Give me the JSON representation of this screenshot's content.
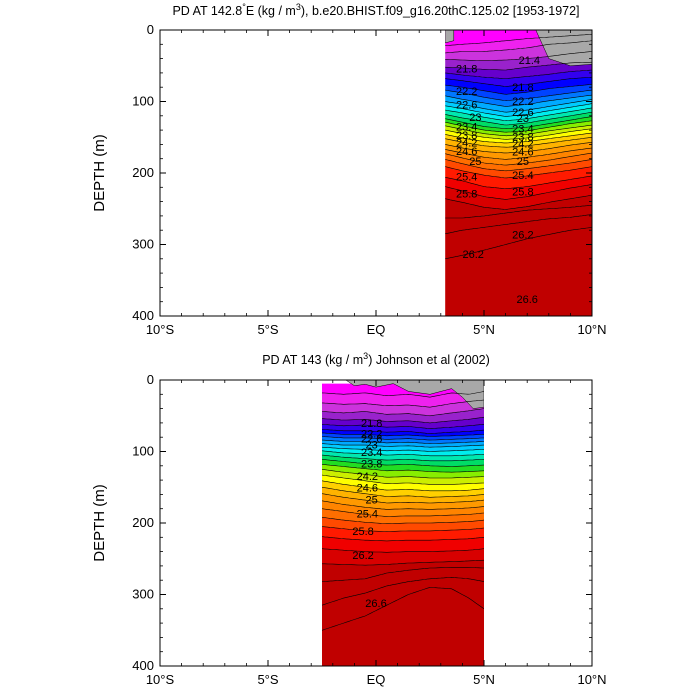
{
  "chart_data": [
    {
      "type": "contour",
      "title_prefix": "PD AT 142.8",
      "title_suffix": "E (kg / m",
      "title_tail": "), b.e20.BHIST.f09_g16.20thC.125.02 [1953-1972]",
      "degree_symbol": "°",
      "superscript": "3",
      "ylabel": "DEPTH (m)",
      "xlim": [
        -10,
        10
      ],
      "ylim": [
        0,
        400
      ],
      "xtick_values": [
        -10,
        -5,
        0,
        5,
        10
      ],
      "xtick_labels": [
        "10°S",
        "5°S",
        "EQ",
        "5°N",
        "10°N"
      ],
      "ytick_values": [
        0,
        100,
        200,
        300,
        400
      ],
      "ytick_labels": [
        "0",
        "100",
        "200",
        "300",
        "400"
      ],
      "data_x_range": [
        3.2,
        10
      ],
      "levels": [
        21.4,
        21.6,
        21.8,
        22.0,
        22.2,
        22.4,
        22.6,
        22.8,
        23.0,
        23.2,
        23.4,
        23.6,
        23.8,
        24.0,
        24.2,
        24.4,
        24.6,
        24.8,
        25.0,
        25.2,
        25.4,
        25.6,
        25.8,
        26.0,
        26.2,
        26.4,
        26.6,
        26.8
      ],
      "colors": [
        "#ff00ff",
        "#ee22ee",
        "#cc33dd",
        "#9922cc",
        "#6600cc",
        "#3300ee",
        "#0000ff",
        "#0044ff",
        "#0077ff",
        "#00aaff",
        "#00ccff",
        "#00eeee",
        "#00e8b0",
        "#00dd66",
        "#22dd22",
        "#88ee00",
        "#ccee00",
        "#ffff00",
        "#ffd000",
        "#ffb300",
        "#ff9900",
        "#ff8400",
        "#ff6e00",
        "#ff4a00",
        "#ff1a00",
        "#f00000",
        "#d80000",
        "#c00000"
      ],
      "contour_depths_by_x": {
        "x": [
          3.2,
          4,
          5,
          6,
          7,
          8,
          9,
          10
        ],
        "depth": [
          [
            0,
            0,
            0,
            0,
            0,
            0,
            0,
            0
          ],
          [
            22,
            20,
            18,
            15,
            12,
            10,
            8,
            6
          ],
          [
            32,
            30,
            30,
            28,
            25,
            20,
            18,
            15
          ],
          [
            41,
            42,
            43,
            42,
            40,
            37,
            33,
            30
          ],
          [
            52,
            53,
            55,
            56,
            52,
            49,
            46,
            45
          ],
          [
            60,
            63,
            66,
            68,
            65,
            62,
            58,
            56
          ],
          [
            68,
            71,
            75,
            79,
            76,
            72,
            68,
            66
          ],
          [
            77,
            80,
            85,
            90,
            87,
            82,
            79,
            76
          ],
          [
            84,
            88,
            94,
            99,
            96,
            92,
            88,
            84
          ],
          [
            92,
            97,
            102,
            107,
            104,
            99,
            95,
            91
          ],
          [
            100,
            104,
            110,
            115,
            112,
            107,
            102,
            97
          ],
          [
            106,
            110,
            116,
            121,
            118,
            113,
            108,
            103
          ],
          [
            112,
            116,
            122,
            127,
            124,
            119,
            114,
            109
          ],
          [
            118,
            123,
            128,
            133,
            130,
            125,
            120,
            115
          ],
          [
            124,
            129,
            135,
            138,
            136,
            131,
            126,
            121
          ],
          [
            129,
            134,
            140,
            143,
            141,
            136,
            131,
            127
          ],
          [
            134,
            139,
            145,
            148,
            146,
            141,
            137,
            133
          ],
          [
            140,
            145,
            150,
            153,
            151,
            147,
            142,
            138
          ],
          [
            146,
            151,
            156,
            158,
            156,
            152,
            148,
            144
          ],
          [
            152,
            157,
            162,
            164,
            162,
            158,
            154,
            150
          ],
          [
            160,
            165,
            170,
            172,
            170,
            166,
            161,
            157
          ],
          [
            167,
            172,
            178,
            181,
            178,
            174,
            169,
            165
          ],
          [
            173,
            179,
            186,
            189,
            186,
            182,
            177,
            172
          ],
          [
            181,
            187,
            194,
            197,
            194,
            190,
            186,
            181
          ],
          [
            191,
            197,
            203,
            207,
            204,
            200,
            196,
            191
          ],
          [
            206,
            211,
            219,
            222,
            219,
            214,
            209,
            204
          ],
          [
            219,
            225,
            233,
            237,
            233,
            227,
            221,
            216
          ],
          [
            236,
            241,
            248,
            251,
            247,
            241,
            236,
            231
          ],
          [
            263,
            263,
            260,
            256,
            252,
            250,
            248,
            245
          ],
          [
            285,
            280,
            276,
            272,
            268,
            264,
            262,
            258
          ],
          [
            320,
            315,
            308,
            300,
            292,
            286,
            280,
            276
          ]
        ]
      },
      "contour_labels": [
        {
          "text": "21.4",
          "x": 7.1,
          "y": 42
        },
        {
          "text": "21.8",
          "x": 4.2,
          "y": 54
        },
        {
          "text": "21.8",
          "x": 6.8,
          "y": 80
        },
        {
          "text": "22.2",
          "x": 4.2,
          "y": 85
        },
        {
          "text": "22.2",
          "x": 6.8,
          "y": 99
        },
        {
          "text": "22.6",
          "x": 4.2,
          "y": 104
        },
        {
          "text": "22.6",
          "x": 6.8,
          "y": 115
        },
        {
          "text": "23",
          "x": 4.6,
          "y": 122
        },
        {
          "text": "23",
          "x": 6.8,
          "y": 123
        },
        {
          "text": "23.4",
          "x": 4.2,
          "y": 135
        },
        {
          "text": "23.4",
          "x": 6.8,
          "y": 138
        },
        {
          "text": "23.8",
          "x": 4.2,
          "y": 147
        },
        {
          "text": "23.8",
          "x": 6.8,
          "y": 149
        },
        {
          "text": "24.2",
          "x": 4.2,
          "y": 157
        },
        {
          "text": "24.2",
          "x": 6.8,
          "y": 159
        },
        {
          "text": "24.6",
          "x": 4.2,
          "y": 169
        },
        {
          "text": "24.6",
          "x": 6.8,
          "y": 170
        },
        {
          "text": "25",
          "x": 4.6,
          "y": 183
        },
        {
          "text": "25",
          "x": 6.8,
          "y": 183
        },
        {
          "text": "25.4",
          "x": 4.2,
          "y": 205
        },
        {
          "text": "25.4",
          "x": 6.8,
          "y": 203
        },
        {
          "text": "25.8",
          "x": 4.2,
          "y": 229
        },
        {
          "text": "25.8",
          "x": 6.8,
          "y": 226
        },
        {
          "text": "26.2",
          "x": 4.5,
          "y": 313
        },
        {
          "text": "26.2",
          "x": 6.8,
          "y": 286
        },
        {
          "text": "26.6",
          "x": 7.0,
          "y": 376
        }
      ],
      "gray_regions": [
        {
          "x": [
            7.4,
            8.0,
            9.0,
            10.0,
            10.0,
            7.4
          ],
          "y": [
            0,
            40,
            50,
            48,
            0,
            0
          ]
        },
        {
          "x": [
            3.2,
            3.6,
            3.6,
            3.2
          ],
          "y": [
            0,
            0,
            15,
            18
          ]
        }
      ]
    },
    {
      "type": "contour",
      "title_prefix": "PD AT 143 (kg / m",
      "title_tail": ") Johnson et al (2002)",
      "superscript": "3",
      "ylabel": "DEPTH (m)",
      "xlim": [
        -10,
        10
      ],
      "ylim": [
        0,
        400
      ],
      "xtick_values": [
        -10,
        -5,
        0,
        5,
        10
      ],
      "xtick_labels": [
        "10°S",
        "5°S",
        "EQ",
        "5°N",
        "10°N"
      ],
      "ytick_values": [
        0,
        100,
        200,
        300,
        400
      ],
      "ytick_labels": [
        "0",
        "100",
        "200",
        "300",
        "400"
      ],
      "data_x_range": [
        -2.5,
        5
      ],
      "levels": [
        21.4,
        21.6,
        21.8,
        22.0,
        22.2,
        22.4,
        22.6,
        22.8,
        23.0,
        23.2,
        23.4,
        23.6,
        23.8,
        24.0,
        24.2,
        24.4,
        24.6,
        24.8,
        25.0,
        25.2,
        25.4,
        25.6,
        25.8,
        26.0,
        26.2,
        26.4,
        26.6,
        26.8
      ],
      "colors": [
        "#ff00ff",
        "#ee22ee",
        "#cc33dd",
        "#9922cc",
        "#6600cc",
        "#3300ee",
        "#0000ff",
        "#0044ff",
        "#0077ff",
        "#00aaff",
        "#00ccff",
        "#00eeee",
        "#00e8b0",
        "#00dd66",
        "#22dd22",
        "#88ee00",
        "#ccee00",
        "#ffff00",
        "#ffd000",
        "#ffb300",
        "#ff9900",
        "#ff8400",
        "#ff6e00",
        "#ff4a00",
        "#ff1a00",
        "#f00000",
        "#d80000",
        "#c00000"
      ],
      "contour_depths_by_x": {
        "x": [
          -2.5,
          -1.5,
          -0.5,
          0.5,
          1.5,
          2.5,
          3.5,
          4.3,
          5.0
        ],
        "depth": [
          [
            5,
            5,
            5,
            5,
            5,
            5,
            5,
            5,
            5
          ],
          [
            18,
            20,
            18,
            22,
            20,
            24,
            18,
            20,
            16
          ],
          [
            32,
            34,
            33,
            36,
            35,
            38,
            33,
            30,
            28
          ],
          [
            44,
            46,
            44,
            48,
            47,
            50,
            46,
            43,
            40
          ],
          [
            54,
            56,
            55,
            58,
            57,
            60,
            57,
            55,
            52
          ],
          [
            62,
            64,
            63,
            66,
            65,
            68,
            66,
            64,
            62
          ],
          [
            69,
            71,
            71,
            73,
            72,
            75,
            73,
            72,
            70
          ],
          [
            74,
            76,
            76,
            78,
            77,
            79,
            78,
            77,
            76
          ],
          [
            79,
            81,
            81,
            83,
            82,
            84,
            83,
            82,
            81
          ],
          [
            84,
            86,
            86,
            88,
            87,
            89,
            88,
            87,
            86
          ],
          [
            89,
            91,
            91,
            93,
            92,
            94,
            93,
            92,
            91
          ],
          [
            94,
            96,
            97,
            99,
            98,
            100,
            99,
            98,
            97
          ],
          [
            99,
            102,
            103,
            105,
            104,
            106,
            106,
            105,
            104
          ],
          [
            105,
            108,
            110,
            112,
            111,
            113,
            113,
            112,
            111
          ],
          [
            111,
            114,
            117,
            119,
            118,
            120,
            121,
            120,
            119
          ],
          [
            118,
            121,
            124,
            127,
            126,
            128,
            129,
            128,
            127
          ],
          [
            125,
            129,
            132,
            136,
            135,
            137,
            137,
            136,
            135
          ],
          [
            133,
            137,
            141,
            145,
            144,
            146,
            146,
            145,
            144
          ],
          [
            141,
            146,
            150,
            154,
            153,
            155,
            155,
            154,
            152
          ],
          [
            150,
            155,
            159,
            163,
            162,
            164,
            163,
            162,
            160
          ],
          [
            159,
            164,
            168,
            172,
            171,
            172,
            171,
            170,
            168
          ],
          [
            169,
            174,
            178,
            181,
            180,
            181,
            180,
            179,
            177
          ],
          [
            180,
            184,
            188,
            191,
            190,
            190,
            189,
            188,
            186
          ],
          [
            192,
            196,
            199,
            201,
            200,
            200,
            199,
            198,
            196
          ],
          [
            205,
            208,
            211,
            212,
            211,
            211,
            210,
            209,
            207
          ],
          [
            219,
            222,
            224,
            225,
            224,
            224,
            223,
            222,
            220
          ],
          [
            236,
            238,
            240,
            241,
            240,
            240,
            239,
            238,
            236
          ],
          [
            257,
            258,
            259,
            258,
            256,
            255,
            254,
            253,
            252
          ],
          [
            282,
            280,
            278,
            270,
            266,
            263,
            262,
            262,
            263
          ],
          [
            315,
            305,
            298,
            288,
            282,
            278,
            276,
            278,
            282
          ],
          [
            350,
            340,
            330,
            315,
            300,
            290,
            292,
            305,
            320
          ]
        ]
      },
      "contour_labels": [
        {
          "text": "21.8",
          "x": -0.2,
          "y": 60
        },
        {
          "text": "22.2",
          "x": -0.2,
          "y": 75
        },
        {
          "text": "22.6",
          "x": -0.2,
          "y": 82
        },
        {
          "text": "23",
          "x": -0.2,
          "y": 90
        },
        {
          "text": "23.4",
          "x": -0.2,
          "y": 101
        },
        {
          "text": "23.8",
          "x": -0.2,
          "y": 117
        },
        {
          "text": "24.2",
          "x": -0.4,
          "y": 134
        },
        {
          "text": "24.6",
          "x": -0.4,
          "y": 150
        },
        {
          "text": "25",
          "x": -0.2,
          "y": 167
        },
        {
          "text": "25.4",
          "x": -0.4,
          "y": 187
        },
        {
          "text": "25.8",
          "x": -0.6,
          "y": 211
        },
        {
          "text": "26.2",
          "x": -0.6,
          "y": 245
        },
        {
          "text": "26.6",
          "x": 0.0,
          "y": 312
        }
      ],
      "gray_regions": [
        {
          "x": [
            -1.4,
            -1.0,
            -0.5,
            0.0,
            0.8,
            1.5,
            2.5,
            3.5,
            4.0,
            4.5,
            5.0,
            5.0,
            -1.4
          ],
          "y": [
            0,
            8,
            6,
            10,
            5,
            16,
            20,
            12,
            24,
            40,
            38,
            0,
            0
          ]
        }
      ]
    }
  ]
}
